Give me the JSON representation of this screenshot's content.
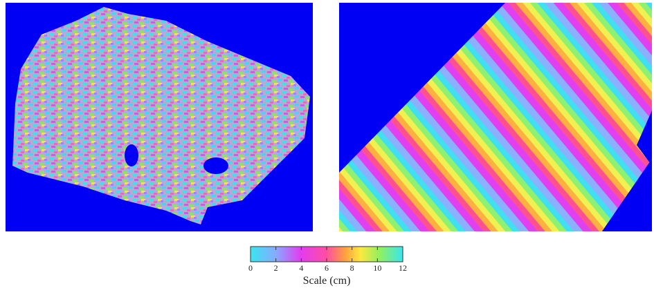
{
  "colorbar": {
    "label": "Scale (cm)",
    "range": [
      0,
      12
    ],
    "ticks": [
      0,
      2,
      4,
      6,
      8,
      10,
      12
    ]
  }
}
